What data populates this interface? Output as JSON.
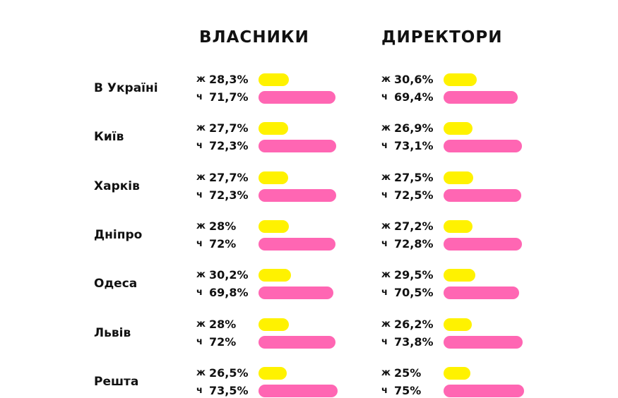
{
  "chart_data": {
    "type": "bar",
    "columns": [
      "ВЛАСНИКИ",
      "ДИРЕКТОРИ"
    ],
    "groups": [
      {
        "label": "В Україні",
        "series": [
          [
            {
              "sex": "ж",
              "text": "28,3%",
              "value": 28.3
            },
            {
              "sex": "ч",
              "text": "71,7%",
              "value": 71.7
            }
          ],
          [
            {
              "sex": "ж",
              "text": "30,6%",
              "value": 30.6
            },
            {
              "sex": "ч",
              "text": "69,4%",
              "value": 69.4
            }
          ]
        ]
      },
      {
        "label": "Київ",
        "series": [
          [
            {
              "sex": "ж",
              "text": "27,7%",
              "value": 27.7
            },
            {
              "sex": "ч",
              "text": "72,3%",
              "value": 72.3
            }
          ],
          [
            {
              "sex": "ж",
              "text": "26,9%",
              "value": 26.9
            },
            {
              "sex": "ч",
              "text": "73,1%",
              "value": 73.1
            }
          ]
        ]
      },
      {
        "label": "Харків",
        "series": [
          [
            {
              "sex": "ж",
              "text": "27,7%",
              "value": 27.7
            },
            {
              "sex": "ч",
              "text": "72,3%",
              "value": 72.3
            }
          ],
          [
            {
              "sex": "ж",
              "text": "27,5%",
              "value": 27.5
            },
            {
              "sex": "ч",
              "text": "72,5%",
              "value": 72.5
            }
          ]
        ]
      },
      {
        "label": "Дніпро",
        "series": [
          [
            {
              "sex": "ж",
              "text": "28%",
              "value": 28
            },
            {
              "sex": "ч",
              "text": "72%",
              "value": 72
            }
          ],
          [
            {
              "sex": "ж",
              "text": "27,2%",
              "value": 27.2
            },
            {
              "sex": "ч",
              "text": "72,8%",
              "value": 72.8
            }
          ]
        ]
      },
      {
        "label": "Одеса",
        "series": [
          [
            {
              "sex": "ж",
              "text": "30,2%",
              "value": 30.2
            },
            {
              "sex": "ч",
              "text": "69,8%",
              "value": 69.8
            }
          ],
          [
            {
              "sex": "ж",
              "text": "29,5%",
              "value": 29.5
            },
            {
              "sex": "ч",
              "text": "70,5%",
              "value": 70.5
            }
          ]
        ]
      },
      {
        "label": "Львів",
        "series": [
          [
            {
              "sex": "ж",
              "text": "28%",
              "value": 28
            },
            {
              "sex": "ч",
              "text": "72%",
              "value": 72
            }
          ],
          [
            {
              "sex": "ж",
              "text": "26,2%",
              "value": 26.2
            },
            {
              "sex": "ч",
              "text": "73,8%",
              "value": 73.8
            }
          ]
        ]
      },
      {
        "label": "Решта",
        "series": [
          [
            {
              "sex": "ж",
              "text": "26,5%",
              "value": 26.5
            },
            {
              "sex": "ч",
              "text": "73,5%",
              "value": 73.5
            }
          ],
          [
            {
              "sex": "ж",
              "text": "25%",
              "value": 25
            },
            {
              "sex": "ч",
              "text": "75%",
              "value": 75
            }
          ]
        ]
      }
    ],
    "colors": {
      "ж": "#fff200",
      "ч": "#ff66b3"
    }
  }
}
